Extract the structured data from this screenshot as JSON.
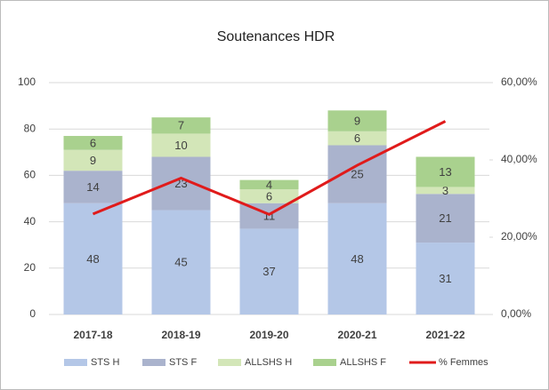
{
  "chart_data": {
    "type": "bar",
    "stacked": true,
    "title": "Soutenances HDR",
    "categories": [
      "2017-18",
      "2018-19",
      "2019-20",
      "2020-21",
      "2021-22"
    ],
    "series": [
      {
        "name": "STS H",
        "color": "#b4c7e7",
        "values": [
          48,
          45,
          37,
          48,
          31
        ]
      },
      {
        "name": "STS F",
        "color": "#aab3cd",
        "values": [
          14,
          23,
          11,
          25,
          21
        ]
      },
      {
        "name": "ALLSHS H",
        "color": "#d3e6b8",
        "values": [
          9,
          10,
          6,
          6,
          3
        ]
      },
      {
        "name": "ALLSHS F",
        "color": "#a9d18e",
        "values": [
          6,
          7,
          4,
          9,
          13
        ]
      },
      {
        "name": "% Femmes",
        "color": "#e01b1b",
        "type": "line",
        "axis": "y2",
        "values": [
          26.0,
          35.3,
          25.9,
          38.6,
          50.0
        ]
      }
    ],
    "ylim": [
      0,
      100
    ],
    "yticks": [
      0,
      20,
      40,
      60,
      80,
      100
    ],
    "y2lim": [
      0,
      60
    ],
    "y2ticks": [
      {
        "value": 0,
        "label": "0,00%"
      },
      {
        "value": 20,
        "label": "20,00%"
      },
      {
        "value": 40,
        "label": "40,00%"
      },
      {
        "value": 60,
        "label": "60,00%"
      }
    ],
    "grid": true,
    "legend": "bottom"
  }
}
